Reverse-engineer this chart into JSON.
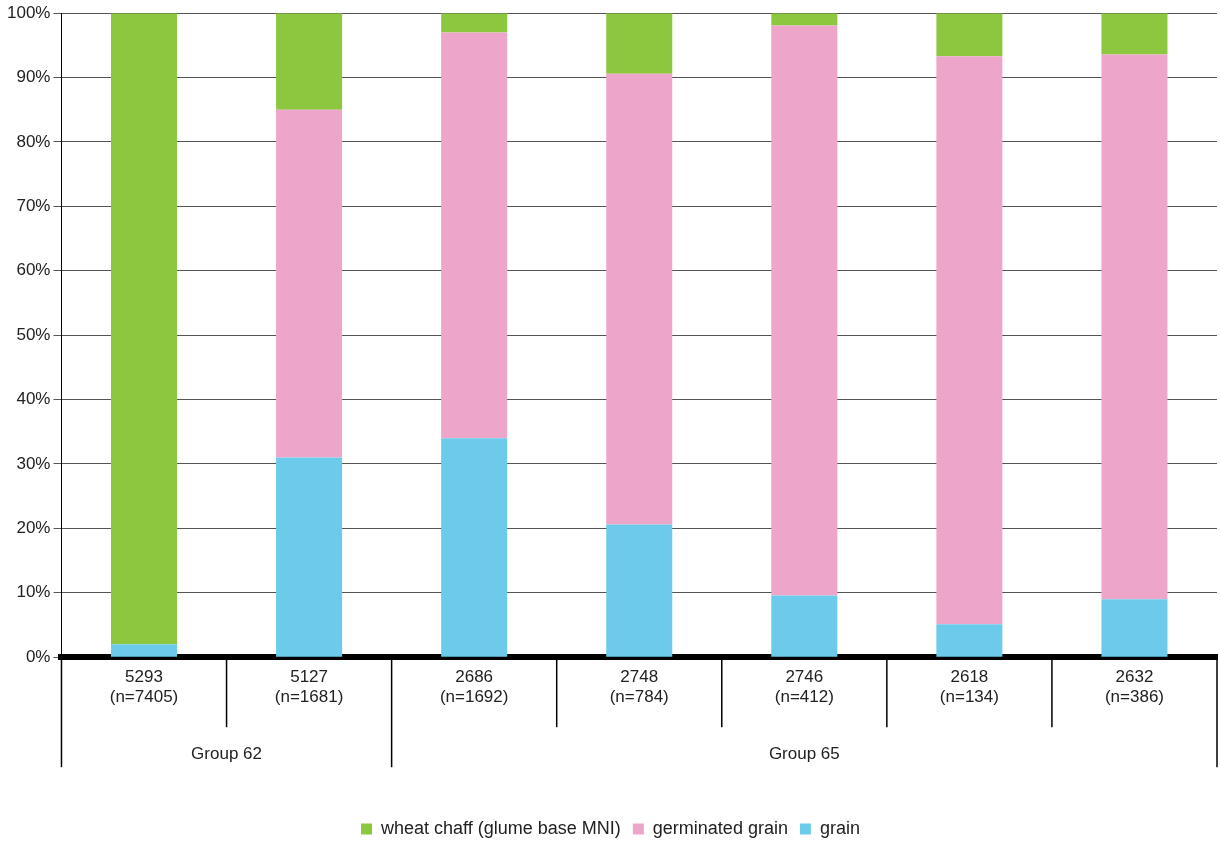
{
  "chart_data": {
    "type": "bar",
    "stacked": true,
    "categories": [
      "5293\n(n=7405)",
      "5127\n(n=1681)",
      "2686\n(n=1692)",
      "2748\n(n=784)",
      "2746\n(n=412)",
      "2618\n(n=134)",
      "2632\n(n=386)"
    ],
    "series": [
      {
        "name": "grain",
        "color": "#6ccbea",
        "values": [
          2,
          31,
          34,
          20.6,
          9.6,
          5.1,
          9
        ]
      },
      {
        "name": "germinated grain",
        "color": "#eda6ca",
        "values": [
          0,
          54,
          63,
          70,
          88.5,
          88.2,
          84.6
        ]
      },
      {
        "name": "wheat chaff (glume base MNI)",
        "color": "#8dc63f",
        "values": [
          98,
          15,
          3,
          9.4,
          1.9,
          6.7,
          6.4
        ]
      }
    ],
    "ylim": [
      0,
      100
    ],
    "yticks": [
      {
        "value": 0,
        "label": "0%"
      },
      {
        "value": 10,
        "label": "10%"
      },
      {
        "value": 20,
        "label": "20%"
      },
      {
        "value": 30,
        "label": "30%"
      },
      {
        "value": 40,
        "label": "40%"
      },
      {
        "value": 50,
        "label": "50%"
      },
      {
        "value": 60,
        "label": "60%"
      },
      {
        "value": 70,
        "label": "70%"
      },
      {
        "value": 80,
        "label": "80%"
      },
      {
        "value": 90,
        "label": "90%"
      },
      {
        "value": 100,
        "label": "100%"
      }
    ],
    "grid": "y",
    "legend": "bottom",
    "annotations": [
      "Group 62",
      "Group 65"
    ]
  }
}
